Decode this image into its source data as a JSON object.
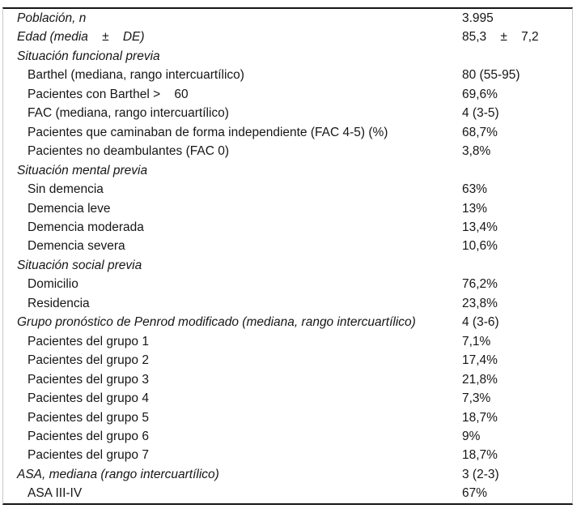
{
  "colors": {
    "text": "#161616",
    "horizontal_rule": "#161616",
    "side_border": "#c9c9c9",
    "background": "#ffffff"
  },
  "table": {
    "rows": [
      {
        "type": "category",
        "label": "Población, n",
        "value": "3.995"
      },
      {
        "type": "category",
        "label": "Edad (media    ±    DE)",
        "value": "85,3    ±    7,2"
      },
      {
        "type": "category",
        "label": "Situación funcional previa",
        "value": ""
      },
      {
        "type": "item",
        "label": "Barthel (mediana, rango intercuartílico)",
        "value": "80 (55-95)"
      },
      {
        "type": "item",
        "label": "Pacientes con Barthel >    60",
        "value": "69,6%"
      },
      {
        "type": "item",
        "label": "FAC (mediana, rango intercuartílico)",
        "value": "4 (3-5)"
      },
      {
        "type": "item",
        "label": "Pacientes que caminaban de forma independiente (FAC 4-5) (%)",
        "value": "68,7%"
      },
      {
        "type": "item",
        "label": "Pacientes no deambulantes (FAC 0)",
        "value": "3,8%"
      },
      {
        "type": "category",
        "label": "Situación mental previa",
        "value": ""
      },
      {
        "type": "item",
        "label": "Sin demencia",
        "value": "63%"
      },
      {
        "type": "item",
        "label": "Demencia leve",
        "value": "13%"
      },
      {
        "type": "item",
        "label": "Demencia moderada",
        "value": "13,4%"
      },
      {
        "type": "item",
        "label": "Demencia severa",
        "value": "10,6%"
      },
      {
        "type": "category",
        "label": "Situación social previa",
        "value": ""
      },
      {
        "type": "item",
        "label": "Domicilio",
        "value": "76,2%"
      },
      {
        "type": "item",
        "label": "Residencia",
        "value": "23,8%"
      },
      {
        "type": "category",
        "label": "Grupo pronóstico de Penrod modificado (mediana, rango intercuartílico)",
        "value": "4 (3-6)"
      },
      {
        "type": "item",
        "label": "Pacientes del grupo 1",
        "value": "7,1%"
      },
      {
        "type": "item",
        "label": "Pacientes del grupo 2",
        "value": "17,4%"
      },
      {
        "type": "item",
        "label": "Pacientes del grupo 3",
        "value": "21,8%"
      },
      {
        "type": "item",
        "label": "Pacientes del grupo 4",
        "value": "7,3%"
      },
      {
        "type": "item",
        "label": "Pacientes del grupo 5",
        "value": "18,7%"
      },
      {
        "type": "item",
        "label": "Pacientes del grupo 6",
        "value": "9%"
      },
      {
        "type": "item",
        "label": "Pacientes del grupo 7",
        "value": "18,7%"
      },
      {
        "type": "category",
        "label": "ASA, mediana (rango intercuartílico)",
        "value": "3 (2-3)"
      },
      {
        "type": "item",
        "label": "ASA III-IV",
        "value": "67%"
      }
    ]
  }
}
